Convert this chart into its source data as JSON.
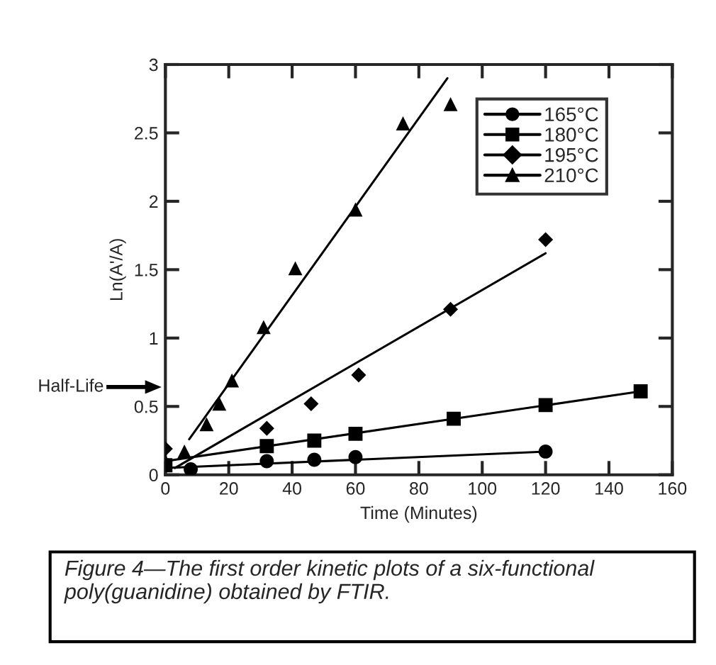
{
  "chart_data": {
    "type": "scatter",
    "xlabel": "Time (Minutes)",
    "ylabel": "Ln(A'/A)",
    "xlim": [
      0,
      160
    ],
    "xticks": [
      0,
      20,
      40,
      60,
      80,
      100,
      120,
      140,
      160
    ],
    "ylim": [
      0,
      3
    ],
    "yticks": [
      0,
      0.5,
      1,
      1.5,
      2,
      2.5,
      3
    ],
    "grid": false,
    "legend": "top right",
    "series": [
      {
        "name": "165°C",
        "color": "#000000",
        "marker": "circle",
        "x": [
          8,
          32,
          47,
          60,
          120
        ],
        "values": [
          0.04,
          0.1,
          0.11,
          0.13,
          0.17
        ]
      },
      {
        "name": "180°C",
        "color": "#000000",
        "marker": "square",
        "x": [
          0,
          32,
          47,
          60,
          91,
          120,
          150
        ],
        "values": [
          0.07,
          0.21,
          0.25,
          0.3,
          0.41,
          0.51,
          0.61
        ]
      },
      {
        "name": "195°C",
        "color": "#000000",
        "marker": "diamond",
        "x": [
          0,
          32,
          46,
          61,
          90,
          120
        ],
        "values": [
          0.19,
          0.34,
          0.52,
          0.73,
          1.21,
          1.72
        ]
      },
      {
        "name": "210°C",
        "color": "#000000",
        "marker": "triangle",
        "x": [
          0,
          6,
          13,
          17,
          21,
          31,
          41,
          60,
          75,
          90
        ],
        "values": [
          0.1,
          0.17,
          0.37,
          0.52,
          0.69,
          1.08,
          1.51,
          1.94,
          2.57,
          2.71
        ]
      },
      {
        "type": "line",
        "color": "#000000",
        "marker": "none",
        "x": [
          0,
          120
        ],
        "values": [
          0.05,
          0.17
        ]
      },
      {
        "type": "line",
        "color": "#000000",
        "marker": "none",
        "x": [
          0,
          150
        ],
        "values": [
          0.1,
          0.61
        ]
      },
      {
        "type": "line",
        "color": "#000000",
        "marker": "none",
        "x": [
          3,
          120
        ],
        "values": [
          0.05,
          1.62
        ]
      },
      {
        "type": "line",
        "color": "#000000",
        "marker": "none",
        "x": [
          7.5,
          89
        ],
        "values": [
          0.26,
          2.9
        ]
      }
    ],
    "annotations": [
      "Half-Life",
      "Figure 4—The first order kinetic plots of a six-functional poly(guanidine) obtained by FTIR."
    ]
  }
}
